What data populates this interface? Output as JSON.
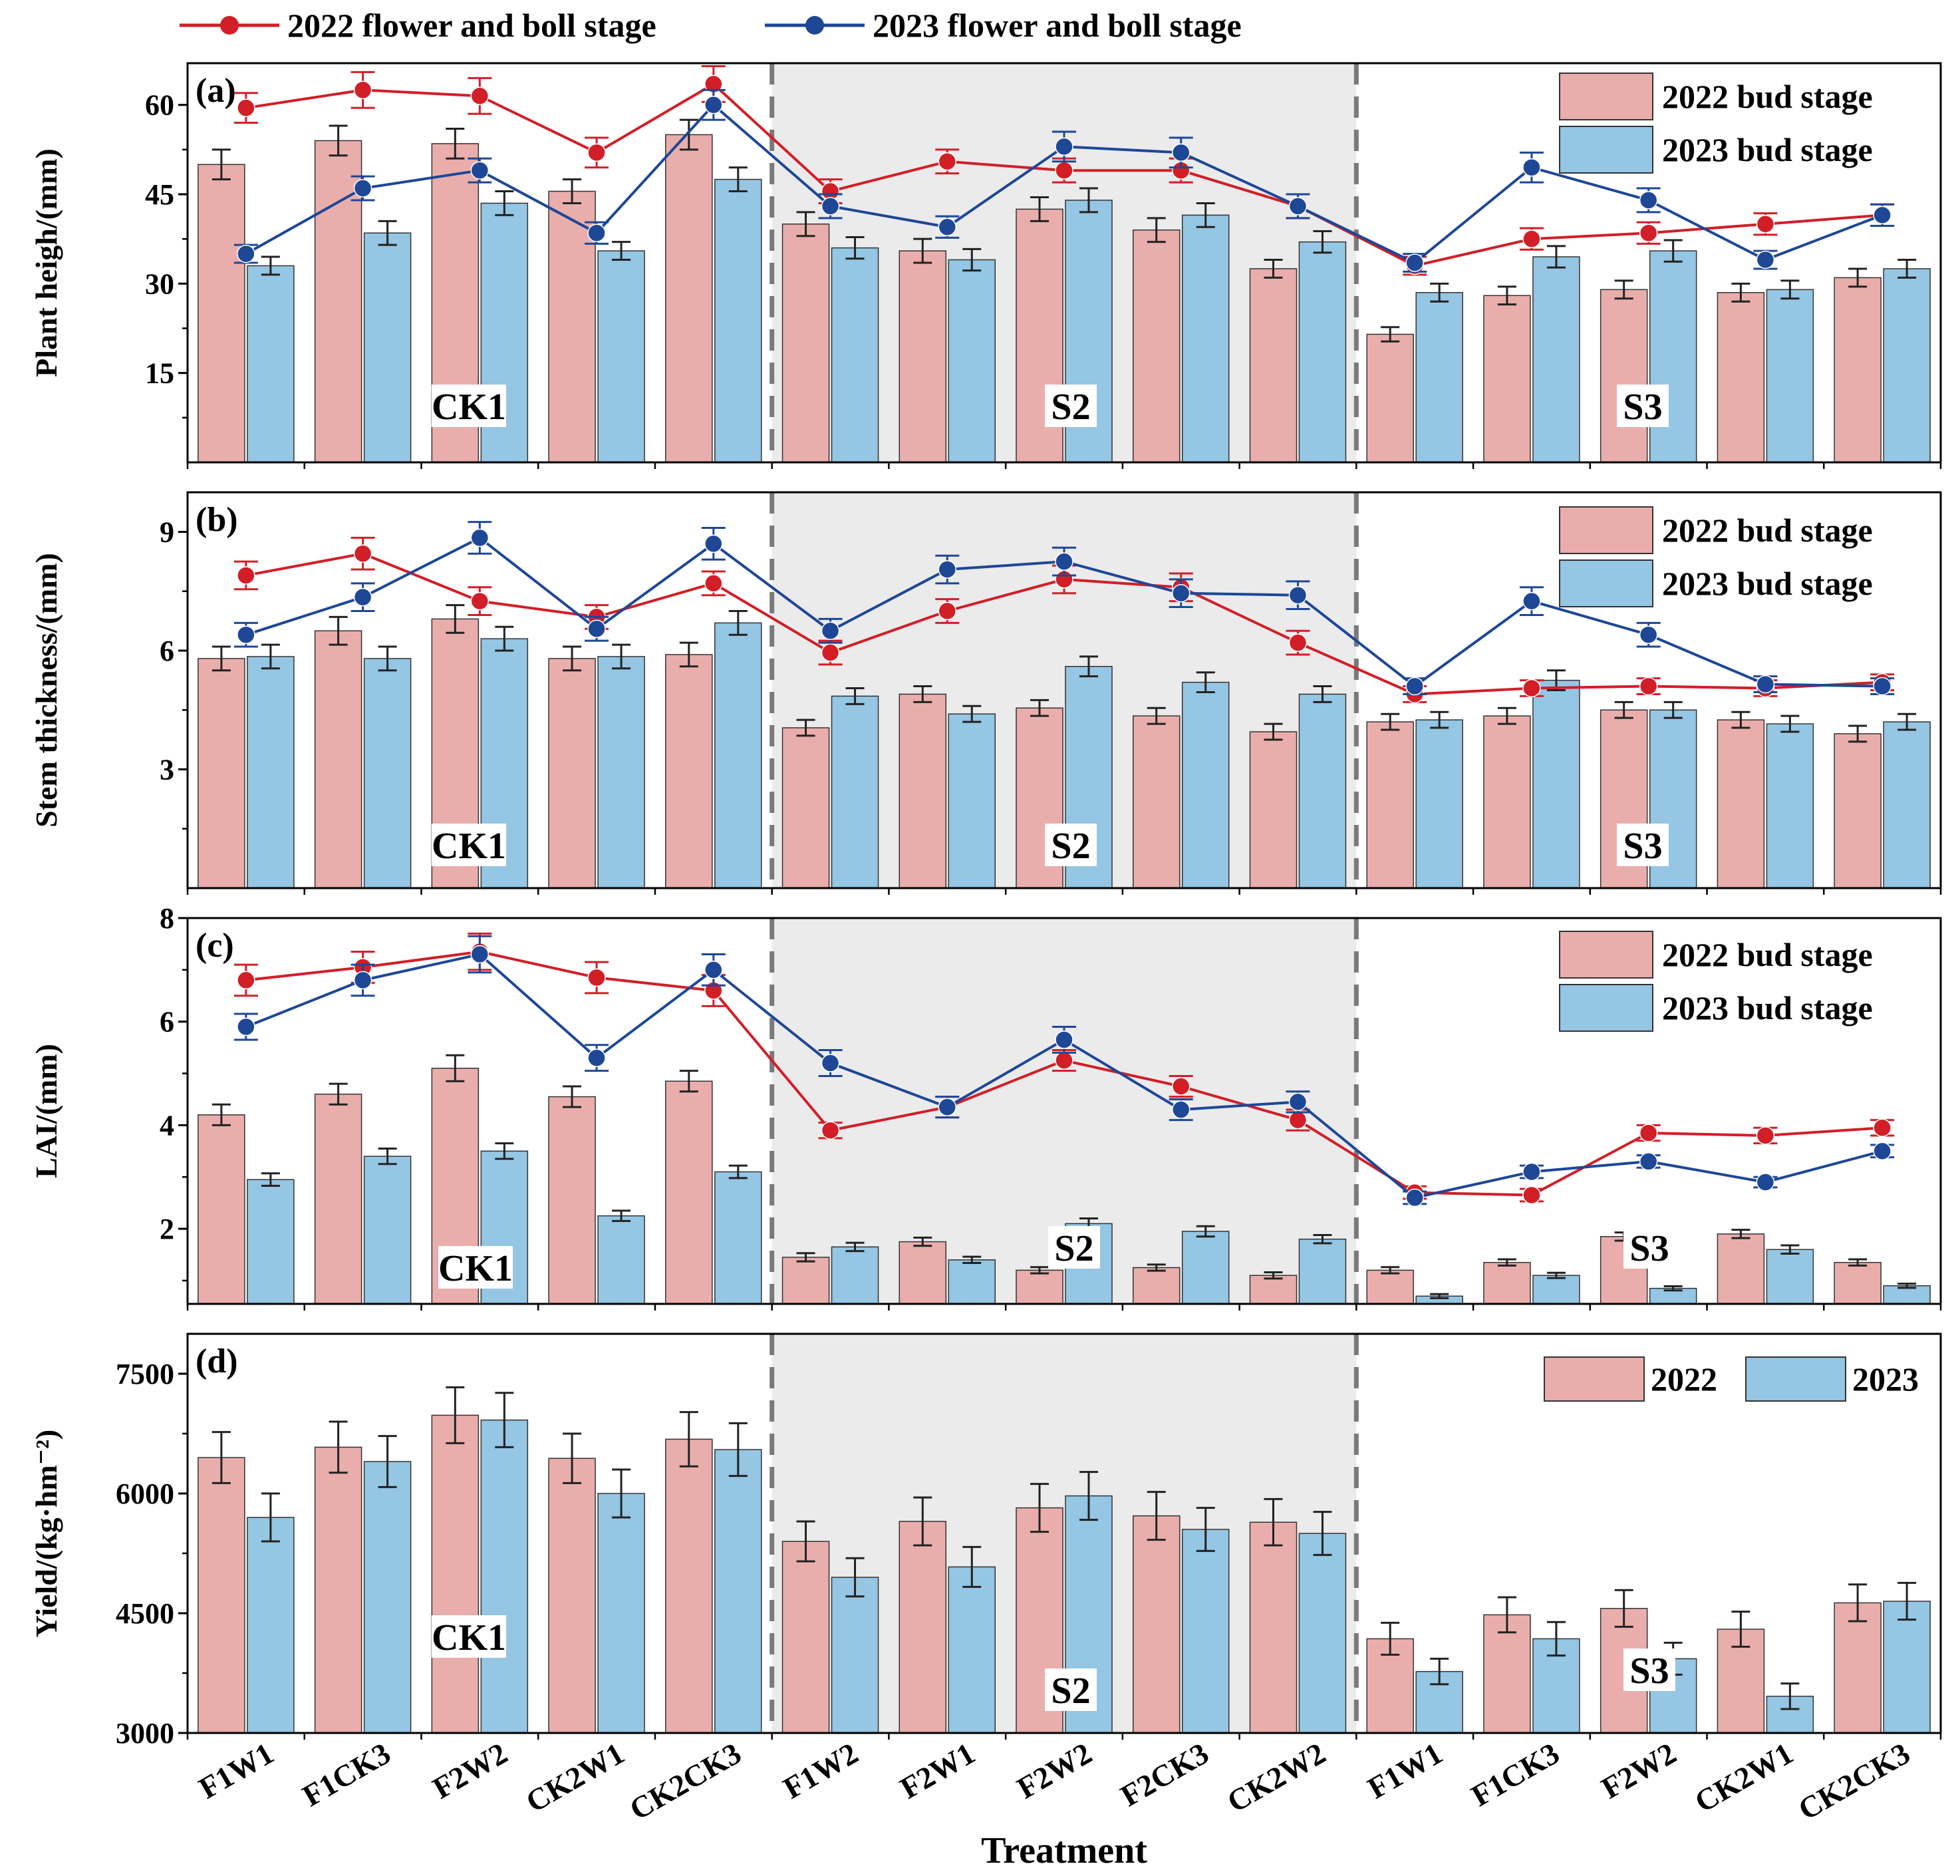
{
  "legend_top": {
    "y2022": "2022 flower and boll stage",
    "y2023": "2023 flower and boll stage"
  },
  "colors": {
    "bar2022": "#e9aeac",
    "bar2023": "#95c6e3",
    "line2022": "#d21e27",
    "line2023": "#1e4796",
    "shade": "#ebebeb",
    "divider": "#7a7a7a"
  },
  "groups": [
    "CK1",
    "S2",
    "S3"
  ],
  "categories": [
    "F1W1",
    "F1CK3",
    "F2W2",
    "CK2W1",
    "CK2CK3",
    "F1W2",
    "F2W1",
    "F2W2",
    "F2CK3",
    "CK2W2",
    "F1W1",
    "F1CK3",
    "F2W2",
    "CK2W1",
    "CK2CK3"
  ],
  "xlabel": "Treatment",
  "chart_data": [
    {
      "type": "bar",
      "panel": "(a)",
      "ylabel": "Plant heigh/(mm)",
      "ylim": [
        0,
        67
      ],
      "yticks": [
        15,
        30,
        45,
        60
      ],
      "legend": [
        "2022 bud stage",
        "2023 bud stage"
      ],
      "series": [
        {
          "name": "2022 bud stage",
          "values": [
            50,
            54,
            53.5,
            45.5,
            55,
            40,
            35.5,
            42.5,
            39,
            32.5,
            21.5,
            28,
            29,
            28.5,
            31
          ],
          "errors": [
            2.5,
            2.5,
            2.5,
            2,
            2.5,
            2,
            2,
            2,
            2,
            1.5,
            1.2,
            1.5,
            1.5,
            1.5,
            1.5
          ]
        },
        {
          "name": "2023 bud stage",
          "values": [
            33,
            38.5,
            43.5,
            35.5,
            47.5,
            36,
            34,
            44,
            41.5,
            37,
            28.5,
            34.5,
            35.5,
            29,
            32.5
          ],
          "errors": [
            1.5,
            2,
            2,
            1.5,
            2,
            1.8,
            1.8,
            2,
            2,
            1.8,
            1.5,
            1.8,
            1.8,
            1.5,
            1.5
          ]
        }
      ],
      "lines": [
        {
          "name": "2022 flower and boll stage",
          "values": [
            59.5,
            62.5,
            61.5,
            52,
            63.5,
            45.5,
            50.5,
            49,
            49,
            43,
            33,
            37.5,
            38.5,
            40,
            41.5
          ],
          "errors": [
            2.5,
            3,
            3,
            2.5,
            3,
            2,
            2,
            2,
            2,
            2,
            1.5,
            1.8,
            1.8,
            1.8,
            1.8
          ]
        },
        {
          "name": "2023 flower and boll stage",
          "values": [
            35,
            46,
            49,
            38.5,
            60,
            43,
            39.5,
            53,
            52,
            43,
            33.5,
            49.5,
            44,
            34,
            41.5
          ],
          "errors": [
            1.5,
            2,
            2,
            1.8,
            2.5,
            2,
            1.8,
            2.5,
            2.5,
            2,
            1.5,
            2.5,
            2,
            1.5,
            1.8
          ]
        }
      ]
    },
    {
      "type": "bar",
      "panel": "(b)",
      "ylabel": "Stem thickness/(mm)",
      "ylim": [
        0,
        10
      ],
      "yticks": [
        3,
        6,
        9
      ],
      "legend": [
        "2022 bud stage",
        "2023 bud stage"
      ],
      "series": [
        {
          "name": "2022 bud stage",
          "values": [
            5.8,
            6.5,
            6.8,
            5.8,
            5.9,
            4.05,
            4.9,
            4.55,
            4.35,
            3.95,
            4.2,
            4.35,
            4.5,
            4.25,
            3.9
          ],
          "errors": [
            0.3,
            0.35,
            0.35,
            0.3,
            0.3,
            0.2,
            0.2,
            0.2,
            0.2,
            0.2,
            0.2,
            0.2,
            0.2,
            0.2,
            0.2
          ]
        },
        {
          "name": "2023 bud stage",
          "values": [
            5.85,
            5.8,
            6.3,
            5.85,
            6.7,
            4.85,
            4.4,
            5.6,
            5.2,
            4.9,
            4.25,
            5.25,
            4.5,
            4.15,
            4.2
          ],
          "errors": [
            0.3,
            0.3,
            0.3,
            0.3,
            0.3,
            0.2,
            0.2,
            0.25,
            0.25,
            0.2,
            0.2,
            0.25,
            0.2,
            0.2,
            0.2
          ]
        }
      ],
      "lines": [
        {
          "name": "2022 flower and boll stage",
          "values": [
            7.9,
            8.45,
            7.25,
            6.85,
            7.7,
            5.95,
            7.0,
            7.8,
            7.6,
            6.2,
            4.9,
            5.05,
            5.1,
            5.05,
            5.2
          ],
          "errors": [
            0.35,
            0.4,
            0.35,
            0.3,
            0.3,
            0.3,
            0.3,
            0.35,
            0.35,
            0.3,
            0.2,
            0.2,
            0.2,
            0.2,
            0.2
          ]
        },
        {
          "name": "2023 flower and boll stage",
          "values": [
            6.4,
            7.35,
            8.85,
            6.55,
            8.7,
            6.5,
            8.05,
            8.25,
            7.45,
            7.4,
            5.1,
            7.25,
            6.4,
            5.15,
            5.1
          ],
          "errors": [
            0.3,
            0.35,
            0.4,
            0.3,
            0.4,
            0.3,
            0.35,
            0.35,
            0.35,
            0.35,
            0.2,
            0.35,
            0.3,
            0.2,
            0.2
          ]
        }
      ]
    },
    {
      "type": "bar",
      "panel": "(c)",
      "ylabel": "LAI/(mm)",
      "ylim": [
        0.55,
        8
      ],
      "yticks": [
        2,
        4,
        6,
        8
      ],
      "legend": [
        "2022 bud stage",
        "2023 bud stage"
      ],
      "series": [
        {
          "name": "2022 bud stage",
          "values": [
            4.2,
            4.6,
            5.1,
            4.55,
            4.85,
            1.45,
            1.75,
            1.2,
            1.25,
            1.1,
            1.2,
            1.35,
            1.85,
            1.9,
            1.35
          ],
          "errors": [
            0.2,
            0.2,
            0.25,
            0.2,
            0.2,
            0.08,
            0.08,
            0.06,
            0.06,
            0.06,
            0.06,
            0.06,
            0.08,
            0.08,
            0.06
          ]
        },
        {
          "name": "2023 bud stage",
          "values": [
            2.95,
            3.4,
            3.5,
            2.25,
            3.1,
            1.65,
            1.4,
            2.1,
            1.95,
            1.8,
            0.7,
            1.1,
            0.85,
            1.6,
            0.9
          ],
          "errors": [
            0.12,
            0.15,
            0.15,
            0.1,
            0.12,
            0.08,
            0.06,
            0.1,
            0.1,
            0.08,
            0.04,
            0.05,
            0.04,
            0.08,
            0.04
          ]
        }
      ],
      "lines": [
        {
          "name": "2022 flower and boll stage",
          "values": [
            6.8,
            7.05,
            7.35,
            6.85,
            6.6,
            3.9,
            4.35,
            5.25,
            4.75,
            4.1,
            2.7,
            2.65,
            3.85,
            3.8,
            3.95
          ],
          "errors": [
            0.3,
            0.3,
            0.35,
            0.3,
            0.3,
            0.15,
            0.2,
            0.2,
            0.2,
            0.2,
            0.12,
            0.12,
            0.15,
            0.15,
            0.15
          ]
        },
        {
          "name": "2023 flower and boll stage",
          "values": [
            5.9,
            6.8,
            7.3,
            5.3,
            7.0,
            5.2,
            4.35,
            5.65,
            4.3,
            4.45,
            2.6,
            3.1,
            3.3,
            2.9,
            3.5
          ],
          "errors": [
            0.25,
            0.3,
            0.35,
            0.25,
            0.3,
            0.25,
            0.2,
            0.25,
            0.2,
            0.2,
            0.12,
            0.12,
            0.12,
            0.1,
            0.12
          ]
        }
      ]
    },
    {
      "type": "bar",
      "panel": "(d)",
      "ylabel": "Yield/(kg·hm⁻²)",
      "ylim": [
        3000,
        8000
      ],
      "yticks": [
        3000,
        4500,
        6000,
        7500
      ],
      "legend": [
        "2022",
        "2023"
      ],
      "series": [
        {
          "name": "2022",
          "values": [
            6450,
            6580,
            6980,
            6440,
            6680,
            5400,
            5650,
            5820,
            5720,
            5640,
            4180,
            4480,
            4560,
            4300,
            4630
          ],
          "errors": [
            320,
            320,
            350,
            310,
            340,
            250,
            300,
            300,
            300,
            290,
            200,
            220,
            230,
            220,
            230
          ]
        },
        {
          "name": "2023",
          "values": [
            5700,
            6400,
            6920,
            6000,
            6550,
            4950,
            5080,
            5970,
            5550,
            5500,
            3770,
            4180,
            3930,
            3460,
            4650
          ],
          "errors": [
            300,
            320,
            340,
            300,
            330,
            240,
            250,
            300,
            270,
            270,
            160,
            210,
            200,
            160,
            230
          ]
        }
      ]
    }
  ]
}
